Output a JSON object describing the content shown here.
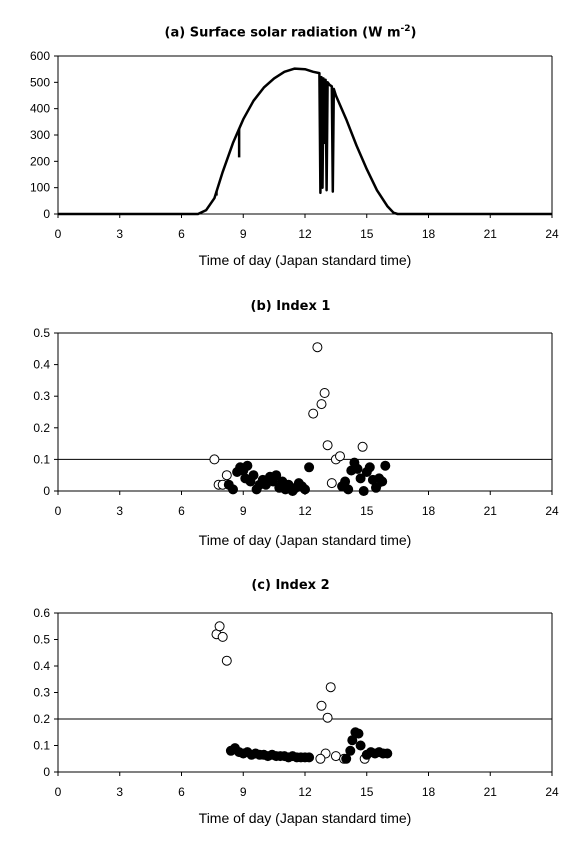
{
  "chart_data": [
    {
      "type": "line",
      "title_main": "(a) Surface solar radiation (W m",
      "title_sup": "-2",
      "title_end": ")",
      "xlabel": "Time of day (Japan standard time)",
      "ylabel": "",
      "xlim": [
        0,
        24
      ],
      "ylim": [
        0,
        600
      ],
      "xticks": [
        0,
        3,
        6,
        9,
        12,
        15,
        18,
        21,
        24
      ],
      "yticks": [
        0,
        100,
        200,
        300,
        400,
        500,
        600
      ],
      "series": [
        {
          "x": [
            0,
            6.8,
            7.2,
            7.6,
            8.0,
            8.5,
            9.0,
            9.5,
            10.0,
            10.5,
            11.0,
            11.5,
            12.0,
            12.4,
            12.7,
            12.75,
            12.8,
            12.85,
            12.9,
            12.95,
            13.0,
            13.05,
            13.1,
            13.2,
            13.3,
            13.35,
            13.4,
            13.5,
            14.0,
            14.5,
            15.0,
            15.5,
            16.0,
            16.3,
            16.5,
            24
          ],
          "y": [
            0,
            0,
            15,
            60,
            160,
            270,
            360,
            430,
            480,
            515,
            540,
            552,
            550,
            540,
            535,
            80,
            520,
            100,
            515,
            270,
            510,
            90,
            500,
            490,
            485,
            85,
            475,
            450,
            360,
            260,
            170,
            90,
            30,
            5,
            0,
            0
          ]
        }
      ],
      "dips": [
        {
          "x": 7.7,
          "y": 70
        },
        {
          "x": 8.8,
          "y": 215
        }
      ]
    },
    {
      "type": "scatter",
      "title": "(b) Index 1",
      "xlabel": "Time of day (Japan standard time)",
      "ylabel": "",
      "xlim": [
        0,
        24
      ],
      "ylim": [
        0,
        0.5
      ],
      "xticks": [
        0,
        3,
        6,
        9,
        12,
        15,
        18,
        21,
        24
      ],
      "yticks": [
        "0",
        "0.1",
        "0.2",
        "0.3",
        "0.4",
        "0.5"
      ],
      "threshold": 0.1,
      "series": [
        {
          "name": "open",
          "points": [
            [
              7.6,
              0.1
            ],
            [
              7.8,
              0.02
            ],
            [
              8.0,
              0.02
            ],
            [
              8.2,
              0.05
            ],
            [
              12.4,
              0.245
            ],
            [
              12.6,
              0.455
            ],
            [
              12.8,
              0.275
            ],
            [
              12.95,
              0.31
            ],
            [
              13.1,
              0.145
            ],
            [
              13.3,
              0.025
            ],
            [
              13.5,
              0.1
            ],
            [
              13.7,
              0.11
            ],
            [
              14.8,
              0.14
            ],
            [
              15.5,
              0.02
            ]
          ]
        },
        {
          "name": "filled",
          "points": [
            [
              8.3,
              0.02
            ],
            [
              8.5,
              0.005
            ],
            [
              8.7,
              0.06
            ],
            [
              8.85,
              0.075
            ],
            [
              9.0,
              0.065
            ],
            [
              9.1,
              0.04
            ],
            [
              9.2,
              0.08
            ],
            [
              9.35,
              0.03
            ],
            [
              9.5,
              0.05
            ],
            [
              9.65,
              0.005
            ],
            [
              9.8,
              0.02
            ],
            [
              9.95,
              0.035
            ],
            [
              10.1,
              0.02
            ],
            [
              10.3,
              0.045
            ],
            [
              10.45,
              0.03
            ],
            [
              10.6,
              0.05
            ],
            [
              10.75,
              0.01
            ],
            [
              10.9,
              0.03
            ],
            [
              11.05,
              0.005
            ],
            [
              11.2,
              0.02
            ],
            [
              11.4,
              0.0
            ],
            [
              11.55,
              0.01
            ],
            [
              11.7,
              0.025
            ],
            [
              11.85,
              0.015
            ],
            [
              12.0,
              0.005
            ],
            [
              12.2,
              0.075
            ],
            [
              13.8,
              0.015
            ],
            [
              13.95,
              0.03
            ],
            [
              14.1,
              0.005
            ],
            [
              14.25,
              0.065
            ],
            [
              14.4,
              0.09
            ],
            [
              14.55,
              0.07
            ],
            [
              14.7,
              0.04
            ],
            [
              14.85,
              0.0
            ],
            [
              15.0,
              0.06
            ],
            [
              15.15,
              0.075
            ],
            [
              15.3,
              0.035
            ],
            [
              15.45,
              0.01
            ],
            [
              15.6,
              0.04
            ],
            [
              15.75,
              0.03
            ],
            [
              15.9,
              0.08
            ]
          ]
        }
      ]
    },
    {
      "type": "scatter",
      "title": "(c) Index 2",
      "xlabel": "Time of day (Japan standard time)",
      "ylabel": "",
      "xlim": [
        0,
        24
      ],
      "ylim": [
        0,
        0.6
      ],
      "xticks": [
        0,
        3,
        6,
        9,
        12,
        15,
        18,
        21,
        24
      ],
      "yticks": [
        "0",
        "0.1",
        "0.2",
        "0.3",
        "0.4",
        "0.5",
        "0.6"
      ],
      "threshold": 0.2,
      "series": [
        {
          "name": "open",
          "points": [
            [
              7.7,
              0.52
            ],
            [
              7.85,
              0.55
            ],
            [
              8.0,
              0.51
            ],
            [
              8.2,
              0.42
            ],
            [
              12.8,
              0.25
            ],
            [
              13.1,
              0.205
            ],
            [
              13.25,
              0.32
            ],
            [
              13.0,
              0.07
            ],
            [
              12.75,
              0.05
            ],
            [
              13.5,
              0.06
            ],
            [
              13.9,
              0.05
            ],
            [
              14.9,
              0.05
            ]
          ]
        },
        {
          "name": "filled",
          "points": [
            [
              8.4,
              0.08
            ],
            [
              8.6,
              0.09
            ],
            [
              8.8,
              0.075
            ],
            [
              9.0,
              0.07
            ],
            [
              9.2,
              0.075
            ],
            [
              9.4,
              0.065
            ],
            [
              9.6,
              0.07
            ],
            [
              9.8,
              0.065
            ],
            [
              10.0,
              0.065
            ],
            [
              10.2,
              0.06
            ],
            [
              10.4,
              0.065
            ],
            [
              10.6,
              0.06
            ],
            [
              10.8,
              0.06
            ],
            [
              11.0,
              0.06
            ],
            [
              11.2,
              0.055
            ],
            [
              11.4,
              0.06
            ],
            [
              11.6,
              0.055
            ],
            [
              11.8,
              0.055
            ],
            [
              12.0,
              0.055
            ],
            [
              12.2,
              0.055
            ],
            [
              14.0,
              0.05
            ],
            [
              14.2,
              0.08
            ],
            [
              14.3,
              0.12
            ],
            [
              14.45,
              0.15
            ],
            [
              14.6,
              0.145
            ],
            [
              14.7,
              0.1
            ],
            [
              15.0,
              0.065
            ],
            [
              15.2,
              0.075
            ],
            [
              15.4,
              0.07
            ],
            [
              15.6,
              0.075
            ],
            [
              15.8,
              0.07
            ],
            [
              16.0,
              0.07
            ]
          ]
        }
      ]
    }
  ]
}
